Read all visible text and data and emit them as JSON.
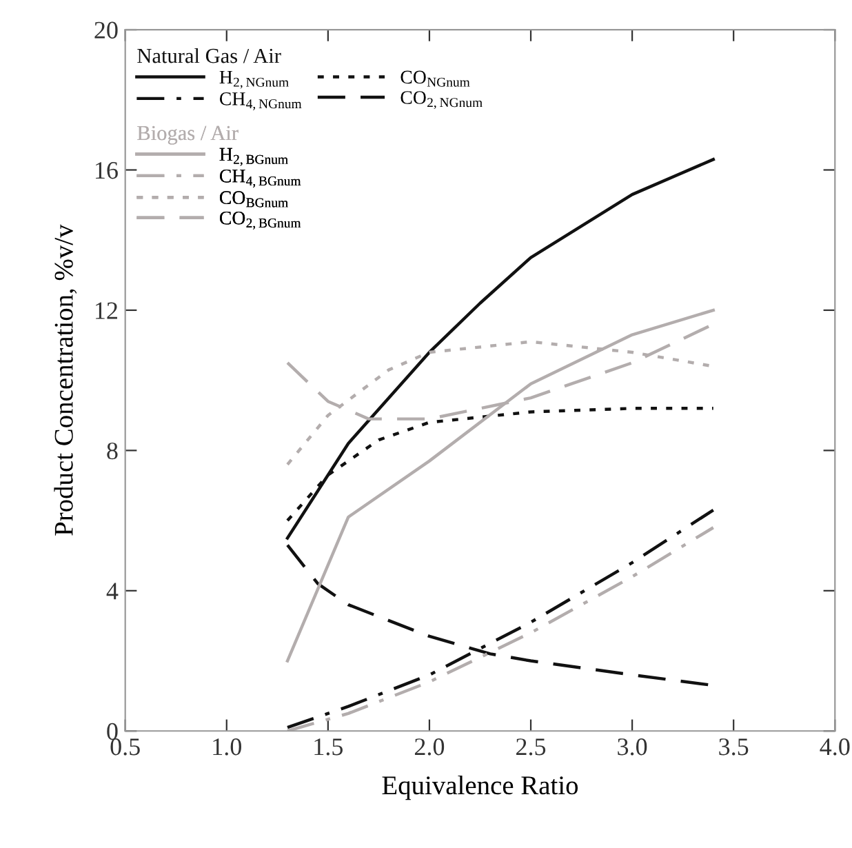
{
  "chart_data": {
    "type": "line",
    "xlabel": "Equivalence Ratio",
    "ylabel": "Product Concentration, %v/v",
    "legend_title": [
      "Natural Gas / Air",
      "Biogas / Air"
    ],
    "xlim": [
      0.5,
      4.0
    ],
    "xticks": [
      {
        "value": 0.5,
        "label": "0.5"
      },
      {
        "value": 1.0,
        "label": "1.0"
      },
      {
        "value": 1.5,
        "label": "1.5"
      },
      {
        "value": 2.0,
        "label": "2.0"
      },
      {
        "value": 2.5,
        "label": "2.5"
      },
      {
        "value": 3.0,
        "label": "3.0"
      },
      {
        "value": 3.5,
        "label": "3.5"
      },
      {
        "value": 4.0,
        "label": "4.0"
      }
    ],
    "ylim": [
      0,
      20
    ],
    "yticks": [
      0,
      4,
      8,
      12,
      16,
      20
    ],
    "grid": false,
    "legend": "top left",
    "series": [
      {
        "name": "H$_{2,NGnum}$",
        "color": "#111111",
        "line_style": "solid",
        "x": [
          1.3,
          1.6,
          2.0,
          2.25,
          2.5,
          3.0,
          3.4
        ],
        "values": [
          5.5,
          8.2,
          10.8,
          12.2,
          13.5,
          15.3,
          16.3
        ]
      },
      {
        "name": "CH$_{4,NGnum}$",
        "color": "#111111",
        "line_style": "dashdot",
        "x": [
          1.3,
          1.6,
          2.0,
          2.5,
          3.0,
          3.4
        ],
        "values": [
          0.1,
          0.7,
          1.6,
          3.1,
          4.8,
          6.3
        ]
      },
      {
        "name": "CO$_{NGnum}$",
        "color": "#111111",
        "line_style": "dotted",
        "x": [
          1.3,
          1.5,
          1.75,
          2.0,
          2.5,
          3.0,
          3.4
        ],
        "values": [
          6.0,
          7.3,
          8.3,
          8.8,
          9.1,
          9.2,
          9.2
        ]
      },
      {
        "name": "CO$_{2,NGnum}$",
        "color": "#111111",
        "line_style": "dashed",
        "x": [
          1.3,
          1.45,
          1.6,
          2.0,
          2.3,
          2.5,
          3.0,
          3.4
        ],
        "values": [
          5.3,
          4.2,
          3.6,
          2.7,
          2.2,
          2.0,
          1.6,
          1.3
        ]
      },
      {
        "name": "H$_{2,BGnum}$",
        "color": "#b3adad",
        "line_style": "solid",
        "x": [
          1.3,
          1.6,
          2.0,
          2.5,
          3.0,
          3.4
        ],
        "values": [
          2.0,
          6.1,
          7.7,
          9.9,
          11.3,
          12.0
        ]
      },
      {
        "name": "CH$_{4,BGnum}$",
        "color": "#b3adad",
        "line_style": "dashdot",
        "x": [
          1.3,
          1.6,
          2.0,
          2.5,
          3.0,
          3.4
        ],
        "values": [
          0.0,
          0.5,
          1.4,
          2.8,
          4.4,
          5.8
        ]
      },
      {
        "name": "CO$_{BGnum}$",
        "color": "#b3adad",
        "line_style": "dotted",
        "x": [
          1.3,
          1.5,
          1.8,
          2.0,
          2.5,
          3.0,
          3.4
        ],
        "values": [
          7.6,
          9.0,
          10.3,
          10.8,
          11.1,
          10.8,
          10.4
        ]
      },
      {
        "name": "CO$_{2,BGnum}$",
        "color": "#b3adad",
        "line_style": "dashed",
        "x": [
          1.3,
          1.5,
          1.7,
          2.0,
          2.5,
          3.0,
          3.4
        ],
        "values": [
          10.5,
          9.4,
          8.9,
          8.9,
          9.5,
          10.5,
          11.6
        ]
      }
    ]
  }
}
